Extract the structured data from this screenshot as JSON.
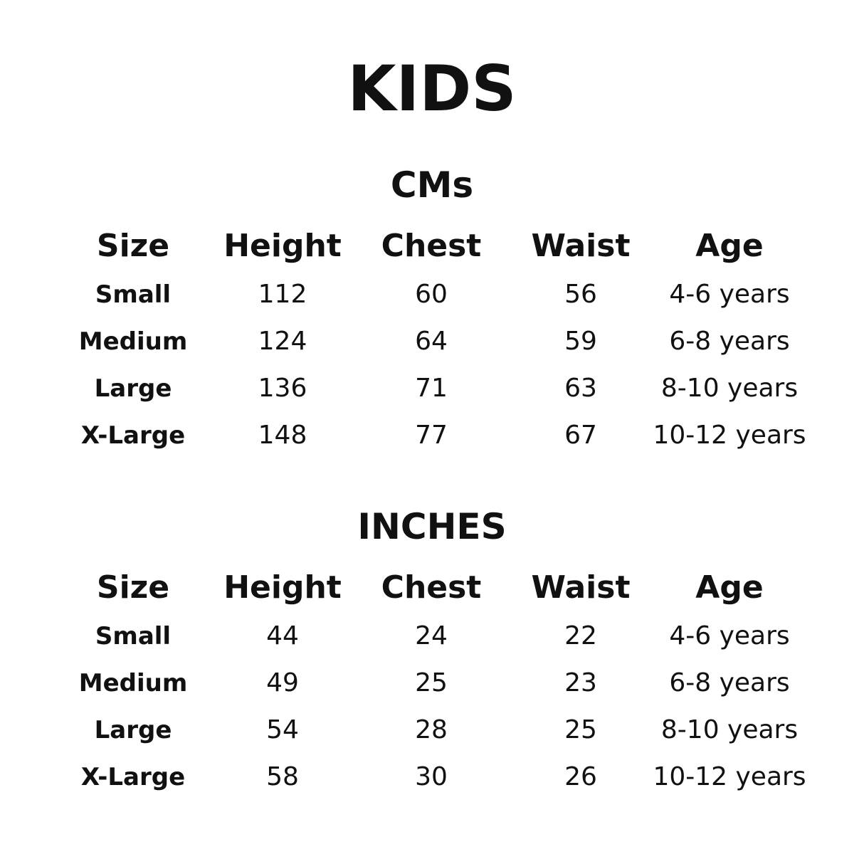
{
  "title": "KIDS",
  "tables": [
    {
      "title": "CMs",
      "columns": [
        "Size",
        "Height",
        "Chest",
        "Waist",
        "Age"
      ],
      "rows": [
        [
          "Small",
          112,
          60,
          56,
          "4-6 years"
        ],
        [
          "Medium",
          124,
          64,
          59,
          "6-8 years"
        ],
        [
          "Large",
          136,
          71,
          63,
          "8-10 years"
        ],
        [
          "X-Large",
          148,
          77,
          67,
          "10-12 years"
        ]
      ]
    },
    {
      "title": "INCHES",
      "columns": [
        "Size",
        "Height",
        "Chest",
        "Waist",
        "Age"
      ],
      "rows": [
        [
          "Small",
          44,
          24,
          22,
          "4-6 years"
        ],
        [
          "Medium",
          49,
          25,
          23,
          "6-8 years"
        ],
        [
          "Large",
          54,
          28,
          25,
          "8-10 years"
        ],
        [
          "X-Large",
          58,
          30,
          26,
          "10-12 years"
        ]
      ]
    }
  ]
}
